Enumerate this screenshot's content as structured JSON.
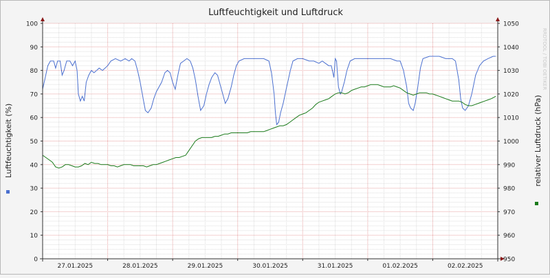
{
  "chart_data": {
    "type": "line",
    "title": "Luftfeuchtigkeit und Luftdruck",
    "ylabel": "Luftfeuchtigkeit (%)",
    "y2label": "relativer Luftdruck (hPa)",
    "watermark": "RRDTOOL / TOBI OETIKER",
    "ylim": [
      0,
      100
    ],
    "y2lim": [
      950,
      1050
    ],
    "yticks": [
      0,
      10,
      20,
      30,
      40,
      50,
      60,
      70,
      80,
      90,
      100
    ],
    "y2ticks": [
      950,
      960,
      970,
      980,
      990,
      1000,
      1010,
      1020,
      1030,
      1040,
      1050
    ],
    "xlim": [
      0,
      7
    ],
    "xticks": [
      {
        "x": 0.5,
        "label": "27.01.2025"
      },
      {
        "x": 1.5,
        "label": "28.01.2025"
      },
      {
        "x": 2.5,
        "label": "29.01.2025"
      },
      {
        "x": 3.5,
        "label": "30.01.2025"
      },
      {
        "x": 4.5,
        "label": "31.01.2025"
      },
      {
        "x": 5.5,
        "label": "01.02.2025"
      },
      {
        "x": 6.5,
        "label": "02.02.2025"
      }
    ],
    "grid": true,
    "series": [
      {
        "color": "#4a6fcf",
        "axis": "left",
        "points": [
          [
            0.0,
            72
          ],
          [
            0.04,
            77
          ],
          [
            0.08,
            82
          ],
          [
            0.12,
            84
          ],
          [
            0.17,
            84
          ],
          [
            0.2,
            81
          ],
          [
            0.23,
            84
          ],
          [
            0.27,
            84
          ],
          [
            0.3,
            78
          ],
          [
            0.33,
            80
          ],
          [
            0.37,
            84
          ],
          [
            0.42,
            84
          ],
          [
            0.46,
            82
          ],
          [
            0.5,
            84
          ],
          [
            0.53,
            80
          ],
          [
            0.55,
            70
          ],
          [
            0.58,
            67
          ],
          [
            0.61,
            69
          ],
          [
            0.64,
            67
          ],
          [
            0.67,
            75
          ],
          [
            0.71,
            78
          ],
          [
            0.75,
            80
          ],
          [
            0.79,
            79
          ],
          [
            0.83,
            80
          ],
          [
            0.87,
            81
          ],
          [
            0.92,
            80
          ],
          [
            0.96,
            81
          ],
          [
            1.0,
            82
          ],
          [
            1.05,
            84
          ],
          [
            1.12,
            85
          ],
          [
            1.2,
            84
          ],
          [
            1.27,
            85
          ],
          [
            1.33,
            84
          ],
          [
            1.37,
            85
          ],
          [
            1.42,
            84
          ],
          [
            1.46,
            80
          ],
          [
            1.5,
            75
          ],
          [
            1.54,
            69
          ],
          [
            1.58,
            63
          ],
          [
            1.62,
            62
          ],
          [
            1.67,
            64
          ],
          [
            1.71,
            68
          ],
          [
            1.75,
            71
          ],
          [
            1.79,
            73
          ],
          [
            1.83,
            75
          ],
          [
            1.88,
            79
          ],
          [
            1.92,
            80
          ],
          [
            1.96,
            79
          ],
          [
            2.0,
            75
          ],
          [
            2.04,
            72
          ],
          [
            2.08,
            78
          ],
          [
            2.12,
            83
          ],
          [
            2.17,
            84
          ],
          [
            2.22,
            85
          ],
          [
            2.27,
            84
          ],
          [
            2.31,
            81
          ],
          [
            2.35,
            76
          ],
          [
            2.39,
            69
          ],
          [
            2.43,
            63
          ],
          [
            2.48,
            65
          ],
          [
            2.52,
            70
          ],
          [
            2.56,
            74
          ],
          [
            2.6,
            77
          ],
          [
            2.65,
            79
          ],
          [
            2.69,
            78
          ],
          [
            2.73,
            74
          ],
          [
            2.77,
            70
          ],
          [
            2.81,
            66
          ],
          [
            2.85,
            68
          ],
          [
            2.9,
            73
          ],
          [
            2.94,
            78
          ],
          [
            2.98,
            82
          ],
          [
            3.02,
            84
          ],
          [
            3.1,
            85
          ],
          [
            3.25,
            85
          ],
          [
            3.4,
            85
          ],
          [
            3.48,
            84
          ],
          [
            3.52,
            79
          ],
          [
            3.56,
            70
          ],
          [
            3.58,
            62
          ],
          [
            3.6,
            57
          ],
          [
            3.63,
            58
          ],
          [
            3.66,
            62
          ],
          [
            3.7,
            66
          ],
          [
            3.73,
            70
          ],
          [
            3.77,
            75
          ],
          [
            3.81,
            80
          ],
          [
            3.85,
            84
          ],
          [
            3.92,
            85
          ],
          [
            4.0,
            85
          ],
          [
            4.1,
            84
          ],
          [
            4.17,
            84
          ],
          [
            4.25,
            83
          ],
          [
            4.3,
            84
          ],
          [
            4.35,
            83
          ],
          [
            4.4,
            82
          ],
          [
            4.44,
            82
          ],
          [
            4.48,
            77
          ],
          [
            4.5,
            85
          ],
          [
            4.52,
            84
          ],
          [
            4.55,
            73
          ],
          [
            4.58,
            70
          ],
          [
            4.6,
            71
          ],
          [
            4.64,
            75
          ],
          [
            4.68,
            80
          ],
          [
            4.73,
            84
          ],
          [
            4.8,
            85
          ],
          [
            4.9,
            85
          ],
          [
            5.05,
            85
          ],
          [
            5.2,
            85
          ],
          [
            5.35,
            85
          ],
          [
            5.45,
            84
          ],
          [
            5.5,
            84
          ],
          [
            5.55,
            80
          ],
          [
            5.6,
            73
          ],
          [
            5.63,
            66
          ],
          [
            5.66,
            64
          ],
          [
            5.7,
            63
          ],
          [
            5.73,
            66
          ],
          [
            5.77,
            73
          ],
          [
            5.81,
            81
          ],
          [
            5.85,
            85
          ],
          [
            5.95,
            86
          ],
          [
            6.1,
            86
          ],
          [
            6.2,
            85
          ],
          [
            6.3,
            85
          ],
          [
            6.35,
            84
          ],
          [
            6.4,
            76
          ],
          [
            6.43,
            68
          ],
          [
            6.46,
            64
          ],
          [
            6.5,
            63
          ],
          [
            6.55,
            65
          ],
          [
            6.6,
            70
          ],
          [
            6.66,
            78
          ],
          [
            6.72,
            82
          ],
          [
            6.78,
            84
          ],
          [
            6.85,
            85
          ],
          [
            6.93,
            86
          ],
          [
            6.97,
            86
          ]
        ]
      },
      {
        "color": "#1a7a1a",
        "axis": "right",
        "points": [
          [
            0.0,
            994
          ],
          [
            0.05,
            993
          ],
          [
            0.1,
            992
          ],
          [
            0.15,
            991
          ],
          [
            0.2,
            989
          ],
          [
            0.25,
            988.5
          ],
          [
            0.3,
            989
          ],
          [
            0.35,
            990
          ],
          [
            0.4,
            990
          ],
          [
            0.45,
            989.5
          ],
          [
            0.5,
            989
          ],
          [
            0.55,
            989
          ],
          [
            0.6,
            989.5
          ],
          [
            0.65,
            990.5
          ],
          [
            0.7,
            990
          ],
          [
            0.75,
            991
          ],
          [
            0.8,
            990.5
          ],
          [
            0.85,
            990.5
          ],
          [
            0.9,
            990
          ],
          [
            0.95,
            990
          ],
          [
            1.0,
            990
          ],
          [
            1.05,
            989.5
          ],
          [
            1.1,
            989.5
          ],
          [
            1.15,
            989
          ],
          [
            1.2,
            989.5
          ],
          [
            1.25,
            990
          ],
          [
            1.3,
            990
          ],
          [
            1.35,
            990
          ],
          [
            1.4,
            989.5
          ],
          [
            1.45,
            989.5
          ],
          [
            1.5,
            989.5
          ],
          [
            1.55,
            989.5
          ],
          [
            1.6,
            989
          ],
          [
            1.65,
            989.5
          ],
          [
            1.7,
            990
          ],
          [
            1.75,
            990
          ],
          [
            1.8,
            990.5
          ],
          [
            1.85,
            991
          ],
          [
            1.9,
            991.5
          ],
          [
            1.95,
            992
          ],
          [
            2.0,
            992.5
          ],
          [
            2.05,
            993
          ],
          [
            2.1,
            993
          ],
          [
            2.15,
            993.5
          ],
          [
            2.2,
            994
          ],
          [
            2.25,
            996
          ],
          [
            2.3,
            998
          ],
          [
            2.35,
            1000
          ],
          [
            2.4,
            1001
          ],
          [
            2.45,
            1001.5
          ],
          [
            2.5,
            1001.5
          ],
          [
            2.55,
            1001.5
          ],
          [
            2.6,
            1001.5
          ],
          [
            2.65,
            1002
          ],
          [
            2.7,
            1002
          ],
          [
            2.75,
            1002.5
          ],
          [
            2.8,
            1003
          ],
          [
            2.85,
            1003
          ],
          [
            2.9,
            1003.5
          ],
          [
            2.95,
            1003.5
          ],
          [
            3.0,
            1003.5
          ],
          [
            3.05,
            1003.5
          ],
          [
            3.1,
            1003.5
          ],
          [
            3.15,
            1003.5
          ],
          [
            3.2,
            1004
          ],
          [
            3.25,
            1004
          ],
          [
            3.3,
            1004
          ],
          [
            3.35,
            1004
          ],
          [
            3.4,
            1004
          ],
          [
            3.45,
            1004.5
          ],
          [
            3.5,
            1005
          ],
          [
            3.55,
            1005.5
          ],
          [
            3.6,
            1006
          ],
          [
            3.65,
            1006.5
          ],
          [
            3.7,
            1006.5
          ],
          [
            3.75,
            1007
          ],
          [
            3.8,
            1008
          ],
          [
            3.85,
            1009
          ],
          [
            3.9,
            1010
          ],
          [
            3.95,
            1011
          ],
          [
            4.0,
            1011.5
          ],
          [
            4.05,
            1012
          ],
          [
            4.1,
            1013
          ],
          [
            4.15,
            1014
          ],
          [
            4.2,
            1015.5
          ],
          [
            4.25,
            1016.5
          ],
          [
            4.3,
            1017
          ],
          [
            4.35,
            1017.5
          ],
          [
            4.4,
            1018
          ],
          [
            4.45,
            1019
          ],
          [
            4.5,
            1020
          ],
          [
            4.55,
            1020.5
          ],
          [
            4.6,
            1020.5
          ],
          [
            4.65,
            1020
          ],
          [
            4.7,
            1020.5
          ],
          [
            4.75,
            1021.5
          ],
          [
            4.8,
            1022
          ],
          [
            4.85,
            1022.5
          ],
          [
            4.9,
            1023
          ],
          [
            4.95,
            1023
          ],
          [
            5.0,
            1023.5
          ],
          [
            5.05,
            1024
          ],
          [
            5.1,
            1024
          ],
          [
            5.15,
            1024
          ],
          [
            5.2,
            1023.5
          ],
          [
            5.25,
            1023
          ],
          [
            5.3,
            1023
          ],
          [
            5.35,
            1023
          ],
          [
            5.4,
            1023.5
          ],
          [
            5.45,
            1023
          ],
          [
            5.5,
            1022.5
          ],
          [
            5.55,
            1021.5
          ],
          [
            5.6,
            1020.5
          ],
          [
            5.65,
            1020
          ],
          [
            5.7,
            1019.5
          ],
          [
            5.75,
            1020
          ],
          [
            5.8,
            1020.5
          ],
          [
            5.85,
            1020.5
          ],
          [
            5.9,
            1020.5
          ],
          [
            5.95,
            1020
          ],
          [
            6.0,
            1020
          ],
          [
            6.05,
            1019.5
          ],
          [
            6.1,
            1019
          ],
          [
            6.15,
            1018.5
          ],
          [
            6.2,
            1018
          ],
          [
            6.25,
            1017.5
          ],
          [
            6.3,
            1017
          ],
          [
            6.35,
            1017
          ],
          [
            6.4,
            1017
          ],
          [
            6.45,
            1016.5
          ],
          [
            6.5,
            1015.5
          ],
          [
            6.55,
            1015
          ],
          [
            6.6,
            1015
          ],
          [
            6.65,
            1015.5
          ],
          [
            6.7,
            1016
          ],
          [
            6.75,
            1016.5
          ],
          [
            6.8,
            1017
          ],
          [
            6.85,
            1017.5
          ],
          [
            6.9,
            1018
          ],
          [
            6.97,
            1019
          ]
        ]
      }
    ]
  }
}
